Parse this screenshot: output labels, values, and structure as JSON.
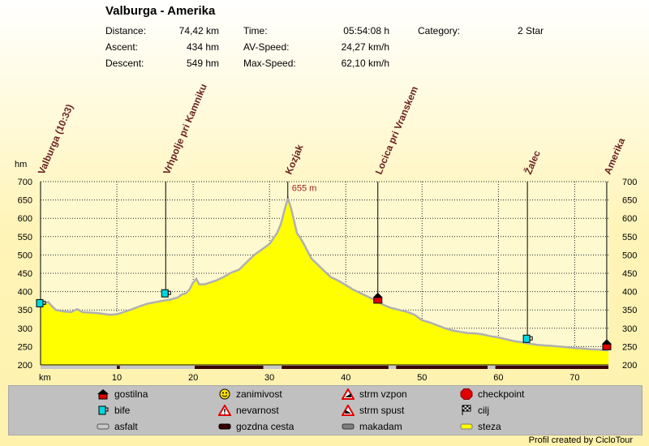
{
  "title": "Valburga - Amerika",
  "stats": {
    "distance_label": "Distance:",
    "distance": "74,42 km",
    "ascent_label": "Ascent:",
    "ascent": "434 hm",
    "descent_label": "Descent:",
    "descent": "549 hm",
    "time_label": "Time:",
    "time": "05:54:08 h",
    "avspeed_label": "AV-Speed:",
    "avspeed": "24,27 km/h",
    "maxspeed_label": "Max-Speed:",
    "maxspeed": "62,10 km/h",
    "category_label": "Category:",
    "category": "2 Star"
  },
  "chart_data": {
    "type": "area",
    "ylabel": "hm",
    "xlabel": "km",
    "xlim": [
      0,
      74.42
    ],
    "ylim": [
      200,
      700
    ],
    "yticks": [
      200,
      250,
      300,
      350,
      400,
      450,
      500,
      550,
      600,
      650,
      700
    ],
    "xticks": [
      10,
      20,
      30,
      40,
      50,
      60,
      70
    ],
    "grid": true,
    "fill_color": "#ffff00",
    "series": [
      {
        "x": [
          0,
          0.5,
          1,
          1.5,
          2,
          3,
          4,
          4.8,
          5.5,
          7,
          8,
          9,
          10,
          11,
          12,
          13,
          14,
          15,
          16,
          17,
          18,
          18.5,
          19,
          19.5,
          20,
          20.4,
          20.8,
          21.5,
          23,
          24,
          25,
          26,
          27,
          28,
          29,
          30,
          31,
          31.5,
          32,
          32.4,
          32.8,
          33.2,
          33.6,
          34,
          34.5,
          35,
          35.5,
          36,
          37,
          38,
          39,
          40,
          41,
          42,
          43,
          44,
          45,
          46,
          47,
          48,
          49,
          50,
          51,
          52,
          53,
          54,
          55,
          56,
          57,
          58,
          59,
          60,
          61,
          62,
          63,
          64,
          65,
          66,
          67,
          68,
          69,
          70,
          71,
          72,
          73,
          74,
          74.42
        ],
        "y": [
          360,
          368,
          372,
          360,
          350,
          346,
          344,
          352,
          344,
          342,
          340,
          337,
          338,
          345,
          352,
          360,
          367,
          371,
          375,
          378,
          384,
          392,
          395,
          405,
          425,
          435,
          420,
          420,
          430,
          440,
          452,
          460,
          480,
          500,
          515,
          530,
          560,
          585,
          625,
          655,
          630,
          595,
          560,
          548,
          530,
          510,
          490,
          480,
          460,
          440,
          430,
          418,
          405,
          395,
          385,
          375,
          363,
          355,
          350,
          345,
          337,
          322,
          316,
          308,
          300,
          294,
          290,
          287,
          286,
          283,
          278,
          275,
          270,
          265,
          262,
          258,
          255,
          253,
          252,
          250,
          248,
          246,
          245,
          243,
          242,
          240,
          240
        ]
      }
    ],
    "peak_annotation": {
      "x": 32.4,
      "y": 655,
      "label": "655 m"
    },
    "waypoints": [
      {
        "label": "Valburga (10:33)",
        "x": 0,
        "y": 365,
        "icon": "bife"
      },
      {
        "label": "Vrhpolje pri Kamniku",
        "x": 16.4,
        "y": 392,
        "icon": "bife"
      },
      {
        "label": "Kozjak",
        "x": 32.4,
        "y": 655,
        "icon": ""
      },
      {
        "label": "Locica pri Vranskem",
        "x": 44.2,
        "y": 375,
        "icon": "gostilna"
      },
      {
        "label": "Žalec",
        "x": 63.8,
        "y": 268,
        "icon": "bife"
      },
      {
        "label": "Amerika",
        "x": 74.2,
        "y": 248,
        "icon": "gostilna"
      }
    ],
    "surface_segments": [
      {
        "from": 0,
        "to": 10,
        "type": "asfalt"
      },
      {
        "from": 10,
        "to": 10.4,
        "type": "gozdna cesta"
      },
      {
        "from": 10.4,
        "to": 20.2,
        "type": "asfalt"
      },
      {
        "from": 20.2,
        "to": 29.2,
        "type": "gozdna cesta"
      },
      {
        "from": 29.2,
        "to": 31.6,
        "type": "asfalt"
      },
      {
        "from": 31.6,
        "to": 45.6,
        "type": "gozdna cesta"
      },
      {
        "from": 45.6,
        "to": 46.6,
        "type": "asfalt"
      },
      {
        "from": 46.6,
        "to": 58.6,
        "type": "gozdna cesta"
      },
      {
        "from": 58.6,
        "to": 59.6,
        "type": "asfalt"
      },
      {
        "from": 59.6,
        "to": 74.42,
        "type": "gozdna cesta"
      }
    ]
  },
  "legend": [
    {
      "label": "gostilna",
      "icon": "house-icon"
    },
    {
      "label": "bife",
      "icon": "cup-icon"
    },
    {
      "label": "asfalt",
      "icon": "surface-asfalt-icon"
    },
    {
      "label": "zanimivost",
      "icon": "smiley-icon"
    },
    {
      "label": "nevarnost",
      "icon": "warning-icon"
    },
    {
      "label": "gozdna cesta",
      "icon": "surface-gozdna-icon"
    },
    {
      "label": "strm vzpon",
      "icon": "steep-up-icon"
    },
    {
      "label": "strm spust",
      "icon": "steep-down-icon"
    },
    {
      "label": "makadam",
      "icon": "surface-makadam-icon"
    },
    {
      "label": "checkpoint",
      "icon": "stop-icon"
    },
    {
      "label": "cilj",
      "icon": "checkered-flag-icon"
    },
    {
      "label": "steza",
      "icon": "surface-steza-icon"
    }
  ],
  "credit": "Profil created by CicloTour"
}
